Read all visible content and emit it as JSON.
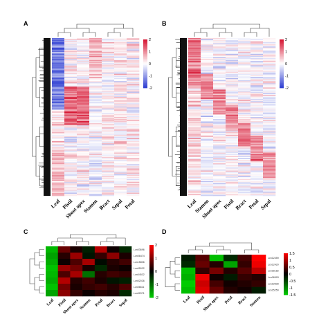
{
  "chart_data": [
    {
      "panel": "A",
      "type": "heatmap",
      "columns": [
        "Leaf",
        "Pistil",
        "Shoot apex",
        "Stamen",
        "Bract",
        "Sepal",
        "Petal"
      ],
      "colorbar": {
        "ticks": [
          2,
          1,
          0,
          -1,
          -2
        ],
        "range": [
          -2,
          2
        ],
        "colors": [
          "#2b3bd1",
          "#ffffff",
          "#d6112f"
        ]
      },
      "rows": 150,
      "dendrogram": true
    },
    {
      "panel": "B",
      "type": "heatmap",
      "columns": [
        "Leaf",
        "Stamen",
        "Shoot apex",
        "Pistil",
        "Bract",
        "Petal",
        "Sepal"
      ],
      "colorbar": {
        "ticks": [
          2,
          1,
          0,
          -1,
          -2
        ],
        "range": [
          -2,
          2
        ],
        "colors": [
          "#2b3bd1",
          "#ffffff",
          "#d6112f"
        ]
      },
      "rows": 150,
      "dendrogram": true
    },
    {
      "panel": "C",
      "type": "heatmap",
      "columns": [
        "Leaf",
        "Pistil",
        "Shoot apex",
        "Stamen",
        "Petal",
        "Bract",
        "Sepal"
      ],
      "row_labels": [
        "Lcn03696",
        "Lcn06474",
        "Lcn15806",
        "Lcn05032",
        "Lcn04532",
        "Lcn02026",
        "Lcn06611",
        "Lcn02971"
      ],
      "colorbar": {
        "ticks": [
          2,
          1,
          0,
          -1,
          -2
        ],
        "range": [
          -2,
          2
        ],
        "colors": [
          "#00cc00",
          "#000000",
          "#ff0000"
        ]
      },
      "values": [
        [
          -1.8,
          0.8,
          0.2,
          -0.3,
          1.4,
          0.1,
          -0.4
        ],
        [
          -1.6,
          0.3,
          1.2,
          -0.2,
          0.4,
          1.1,
          0.2
        ],
        [
          -1.7,
          0.1,
          0.6,
          1.3,
          -0.1,
          0.3,
          0.5
        ],
        [
          -1.9,
          1.2,
          0.9,
          0.2,
          -0.4,
          0.2,
          0.1
        ],
        [
          -1.8,
          0.6,
          1.3,
          -1.1,
          0.3,
          0.5,
          0.4
        ],
        [
          -1.7,
          1.4,
          0.3,
          0.5,
          0.2,
          -0.2,
          -0.3
        ],
        [
          -1.9,
          0.9,
          0.2,
          0.4,
          0.5,
          0.3,
          0.6
        ],
        [
          -1.6,
          1.1,
          0.4,
          0.1,
          0.3,
          0.2,
          -0.4
        ]
      ],
      "dendrogram": true
    },
    {
      "panel": "D",
      "type": "heatmap",
      "columns": [
        "Leaf",
        "Pistil",
        "Shoot apex",
        "Petal",
        "Bract",
        "Stamen"
      ],
      "row_labels": [
        "Lcn12459",
        "Lcn12420",
        "Lcn15182",
        "Lcn06593",
        "Lcn12539",
        "Lcn15250"
      ],
      "colorbar": {
        "ticks": [
          1.5,
          1,
          0.5,
          0,
          -0.5,
          -1,
          -1.5
        ],
        "range": [
          -1.5,
          1.5
        ],
        "colors": [
          "#00cc00",
          "#000000",
          "#ff0000"
        ]
      },
      "values": [
        [
          -0.2,
          0.5,
          -1.4,
          -0.3,
          0.4,
          1.5
        ],
        [
          -0.3,
          0.6,
          0.2,
          -1.2,
          0.3,
          1.4
        ],
        [
          -1.4,
          0.3,
          0.7,
          0.2,
          0.5,
          1.1
        ],
        [
          -1.3,
          1.4,
          0.1,
          -0.2,
          0.3,
          0.2
        ],
        [
          -1.5,
          1.2,
          0.4,
          0.1,
          0.2,
          0.3
        ],
        [
          -1.4,
          1.3,
          0.6,
          0.2,
          0.1,
          -0.2
        ]
      ],
      "dendrogram": true
    }
  ],
  "panels": {
    "a": {
      "label": "A"
    },
    "b": {
      "label": "B"
    },
    "c": {
      "label": "C"
    },
    "d": {
      "label": "D"
    }
  }
}
